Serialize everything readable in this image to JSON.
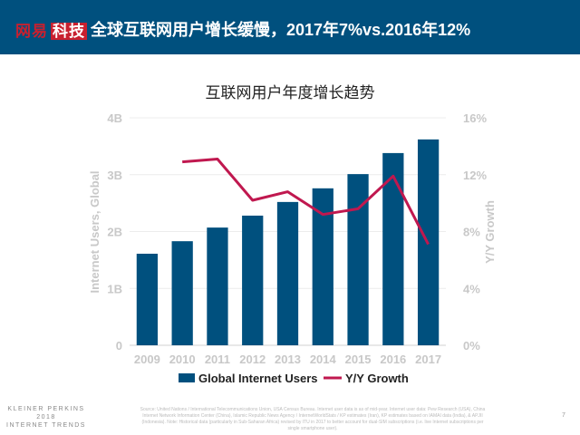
{
  "header": {
    "logo_text": "网易科技",
    "logo_part1": "网易",
    "logo_part2": "科技",
    "title": "全球互联网用户增长缓慢，2017年7%vs.2016年12%",
    "background_color": "#00507e"
  },
  "chart_data": {
    "type": "bar+line",
    "title": "互联网用户年度增长趋势",
    "categories": [
      "2009",
      "2010",
      "2011",
      "2012",
      "2013",
      "2014",
      "2015",
      "2016",
      "2017"
    ],
    "series": [
      {
        "name": "Global Internet Users",
        "type": "bar",
        "axis": "left",
        "color": "#00507e",
        "values": [
          1.61,
          1.83,
          2.07,
          2.28,
          2.52,
          2.76,
          3.01,
          3.38,
          3.62
        ]
      },
      {
        "name": "Y/Y Growth",
        "type": "line",
        "axis": "right",
        "color": "#c0184f",
        "values": [
          null,
          12.9,
          13.1,
          10.2,
          10.8,
          9.2,
          9.6,
          11.9,
          7.1
        ]
      }
    ],
    "ylabel": "Internet Users, Global",
    "y2label": "Y/Y Growth",
    "ylim": [
      0,
      4
    ],
    "y2lim": [
      0,
      16
    ],
    "yticks": [
      "0",
      "1B",
      "2B",
      "3B",
      "4B"
    ],
    "y2ticks": [
      "0%",
      "4%",
      "8%",
      "12%",
      "16%"
    ],
    "grid": true,
    "legend": "bottom"
  },
  "footer": {
    "brand_line1": "KLEINER PERKINS",
    "brand_line2": "2018",
    "brand_line3": "INTERNET TRENDS",
    "source": "Source: United Nations / International Telecommunications Union, USA Census Bureau. Internet user data is as of mid-year. Internet user data: Pew Research (USA), China Internet Network Information Center (China), Islamic Republic News Agency / InternetWorldStats / KP estimates (Iran), KP estimates based on IAMAI data (India), & APJII (Indonesia). Note: Historical data (particularly in Sub-Saharan Africa) revised by ITU in 2017 to better account for dual-SIM subscriptions (i.e. live Internet subscriptions per single smartphone user).",
    "page_number": "7"
  }
}
